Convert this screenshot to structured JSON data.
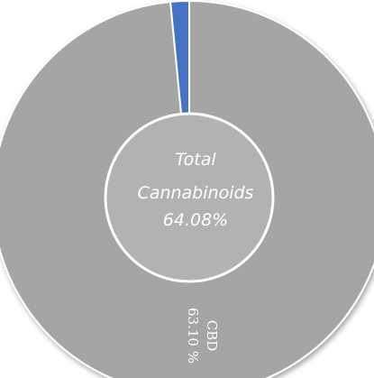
{
  "chart_data": {
    "type": "pie",
    "style": "donut",
    "slices": [
      {
        "label": "CBD",
        "value": 63.1,
        "value_label": "63.10 %",
        "color": "#a5a5a5"
      },
      {
        "label": "",
        "value": 0.98,
        "value_label": "",
        "color": "#4472c4"
      }
    ],
    "center_label": [
      "Total",
      "Cannabinoids",
      "64.08%"
    ],
    "inner_color": "#b2b2b2",
    "outline_color": "#ffffff",
    "legend": "none"
  }
}
